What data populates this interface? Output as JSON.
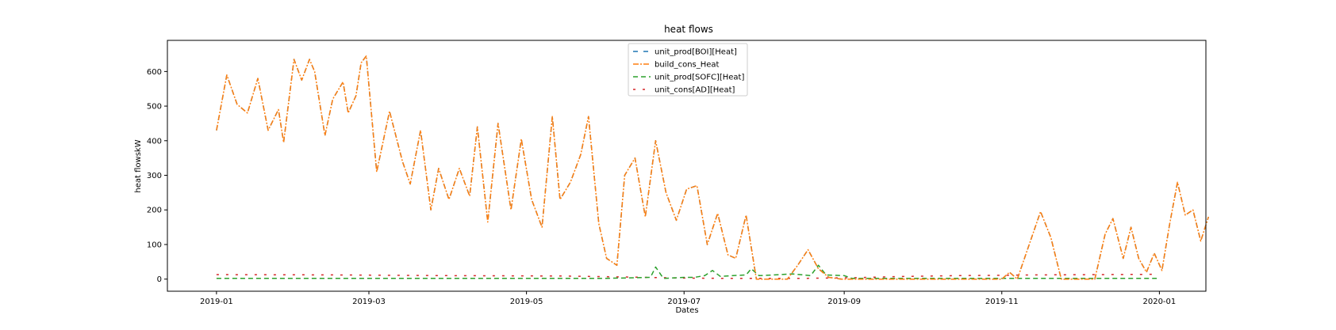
{
  "chart_data": {
    "type": "line",
    "title": "heat flows",
    "xlabel": "Dates",
    "ylabel": "heat flowskW",
    "x_ticks": [
      "2019-01",
      "2019-03",
      "2019-05",
      "2019-07",
      "2019-09",
      "2019-11",
      "2020-01"
    ],
    "y_ticks": [
      0,
      100,
      200,
      300,
      400,
      500,
      600
    ],
    "ylim": [
      -35,
      690
    ],
    "xlim": [
      "2018-12-13",
      "2020-01-19"
    ],
    "grid": false,
    "legend_position": "upper center",
    "series": [
      {
        "name": "unit_prod[BOI][Heat]",
        "color": "#1f77b4",
        "dash": "6,7",
        "values": [
          [
            "2019-01-01",
            430
          ],
          [
            "2019-01-05",
            590
          ],
          [
            "2019-01-09",
            505
          ],
          [
            "2019-01-13",
            480
          ],
          [
            "2019-01-17",
            580
          ],
          [
            "2019-01-21",
            430
          ],
          [
            "2019-01-25",
            490
          ],
          [
            "2019-01-27",
            395
          ],
          [
            "2019-01-31",
            635
          ],
          [
            "2019-02-03",
            575
          ],
          [
            "2019-02-06",
            635
          ],
          [
            "2019-02-08",
            600
          ],
          [
            "2019-02-12",
            415
          ],
          [
            "2019-02-15",
            520
          ],
          [
            "2019-02-19",
            570
          ],
          [
            "2019-02-21",
            480
          ],
          [
            "2019-02-24",
            530
          ],
          [
            "2019-02-26",
            625
          ],
          [
            "2019-02-28",
            645
          ],
          [
            "2019-03-04",
            310
          ],
          [
            "2019-03-09",
            485
          ],
          [
            "2019-03-14",
            340
          ],
          [
            "2019-03-17",
            275
          ],
          [
            "2019-03-21",
            430
          ],
          [
            "2019-03-25",
            200
          ],
          [
            "2019-03-28",
            320
          ],
          [
            "2019-04-01",
            230
          ],
          [
            "2019-04-05",
            320
          ],
          [
            "2019-04-09",
            240
          ],
          [
            "2019-04-12",
            440
          ],
          [
            "2019-04-16",
            165
          ],
          [
            "2019-04-20",
            450
          ],
          [
            "2019-04-25",
            200
          ],
          [
            "2019-04-29",
            405
          ],
          [
            "2019-05-03",
            230
          ],
          [
            "2019-05-07",
            150
          ],
          [
            "2019-05-11",
            470
          ],
          [
            "2019-05-14",
            230
          ],
          [
            "2019-05-18",
            280
          ],
          [
            "2019-05-22",
            360
          ],
          [
            "2019-05-25",
            470
          ],
          [
            "2019-05-29",
            160
          ],
          [
            "2019-06-01",
            60
          ],
          [
            "2019-06-05",
            40
          ],
          [
            "2019-06-08",
            300
          ],
          [
            "2019-06-12",
            350
          ],
          [
            "2019-06-16",
            180
          ],
          [
            "2019-06-20",
            400
          ],
          [
            "2019-06-24",
            250
          ],
          [
            "2019-06-28",
            170
          ],
          [
            "2019-07-02",
            260
          ],
          [
            "2019-07-06",
            270
          ],
          [
            "2019-07-10",
            100
          ],
          [
            "2019-07-14",
            190
          ],
          [
            "2019-07-18",
            70
          ],
          [
            "2019-07-21",
            60
          ],
          [
            "2019-07-25",
            185
          ],
          [
            "2019-07-29",
            0
          ],
          [
            "2019-08-05",
            0
          ],
          [
            "2019-08-10",
            0
          ],
          [
            "2019-08-14",
            40
          ],
          [
            "2019-08-18",
            85
          ],
          [
            "2019-08-22",
            30
          ],
          [
            "2019-08-26",
            5
          ],
          [
            "2019-08-31",
            0
          ],
          [
            "2019-09-10",
            0
          ],
          [
            "2019-09-20",
            0
          ],
          [
            "2019-09-30",
            0
          ],
          [
            "2019-10-08",
            0
          ],
          [
            "2019-10-16",
            0
          ],
          [
            "2019-10-24",
            0
          ],
          [
            "2019-11-01",
            0
          ],
          [
            "2019-11-04",
            20
          ],
          [
            "2019-11-07",
            0
          ],
          [
            "2019-11-13",
            130
          ],
          [
            "2019-11-16",
            195
          ],
          [
            "2019-11-20",
            120
          ],
          [
            "2019-11-24",
            0
          ],
          [
            "2019-12-01",
            0
          ],
          [
            "2019-12-07",
            0
          ],
          [
            "2019-12-11",
            130
          ],
          [
            "2019-12-14",
            175
          ],
          [
            "2019-12-18",
            60
          ],
          [
            "2019-12-21",
            150
          ],
          [
            "2019-12-24",
            60
          ],
          [
            "2019-12-27",
            20
          ],
          [
            "2019-12-30",
            75
          ],
          [
            "2020-01-02",
            25
          ],
          [
            "2020-01-05",
            160
          ],
          [
            "2020-01-08",
            280
          ],
          [
            "2020-01-11",
            185
          ],
          [
            "2020-01-14",
            200
          ],
          [
            "2020-01-17",
            110
          ],
          [
            "2020-01-20",
            180
          ]
        ]
      },
      {
        "name": "build_cons_Heat",
        "color": "#ff7f0e",
        "dash": "7,2,2,2",
        "values": []
      },
      {
        "name": "unit_prod[SOFC][Heat]",
        "color": "#2ca02c",
        "dash": "6,4",
        "values": [
          [
            "2019-01-01",
            2
          ],
          [
            "2019-05-31",
            2
          ],
          [
            "2019-06-18",
            5
          ],
          [
            "2019-06-20",
            35
          ],
          [
            "2019-06-23",
            2
          ],
          [
            "2019-07-01",
            5
          ],
          [
            "2019-07-05",
            5
          ],
          [
            "2019-07-09",
            10
          ],
          [
            "2019-07-12",
            25
          ],
          [
            "2019-07-15",
            8
          ],
          [
            "2019-07-20",
            10
          ],
          [
            "2019-07-25",
            12
          ],
          [
            "2019-07-27",
            30
          ],
          [
            "2019-07-30",
            10
          ],
          [
            "2019-08-05",
            12
          ],
          [
            "2019-08-12",
            15
          ],
          [
            "2019-08-19",
            10
          ],
          [
            "2019-08-22",
            40
          ],
          [
            "2019-08-25",
            12
          ],
          [
            "2019-09-01",
            10
          ],
          [
            "2019-09-04",
            2
          ],
          [
            "2019-12-31",
            2
          ]
        ]
      },
      {
        "name": "unit_cons[AD][Heat]",
        "color": "#d62728",
        "dash": "3,9",
        "values": [
          [
            "2019-01-01",
            13
          ],
          [
            "2019-02-15",
            12
          ],
          [
            "2019-04-01",
            10
          ],
          [
            "2019-05-15",
            9
          ],
          [
            "2019-06-10",
            6
          ],
          [
            "2019-07-01",
            3
          ],
          [
            "2019-07-20",
            2
          ],
          [
            "2019-08-15",
            2
          ],
          [
            "2019-09-05",
            4
          ],
          [
            "2019-09-20",
            7
          ],
          [
            "2019-10-15",
            10
          ],
          [
            "2019-11-15",
            12
          ],
          [
            "2019-12-31",
            14
          ]
        ]
      }
    ]
  }
}
